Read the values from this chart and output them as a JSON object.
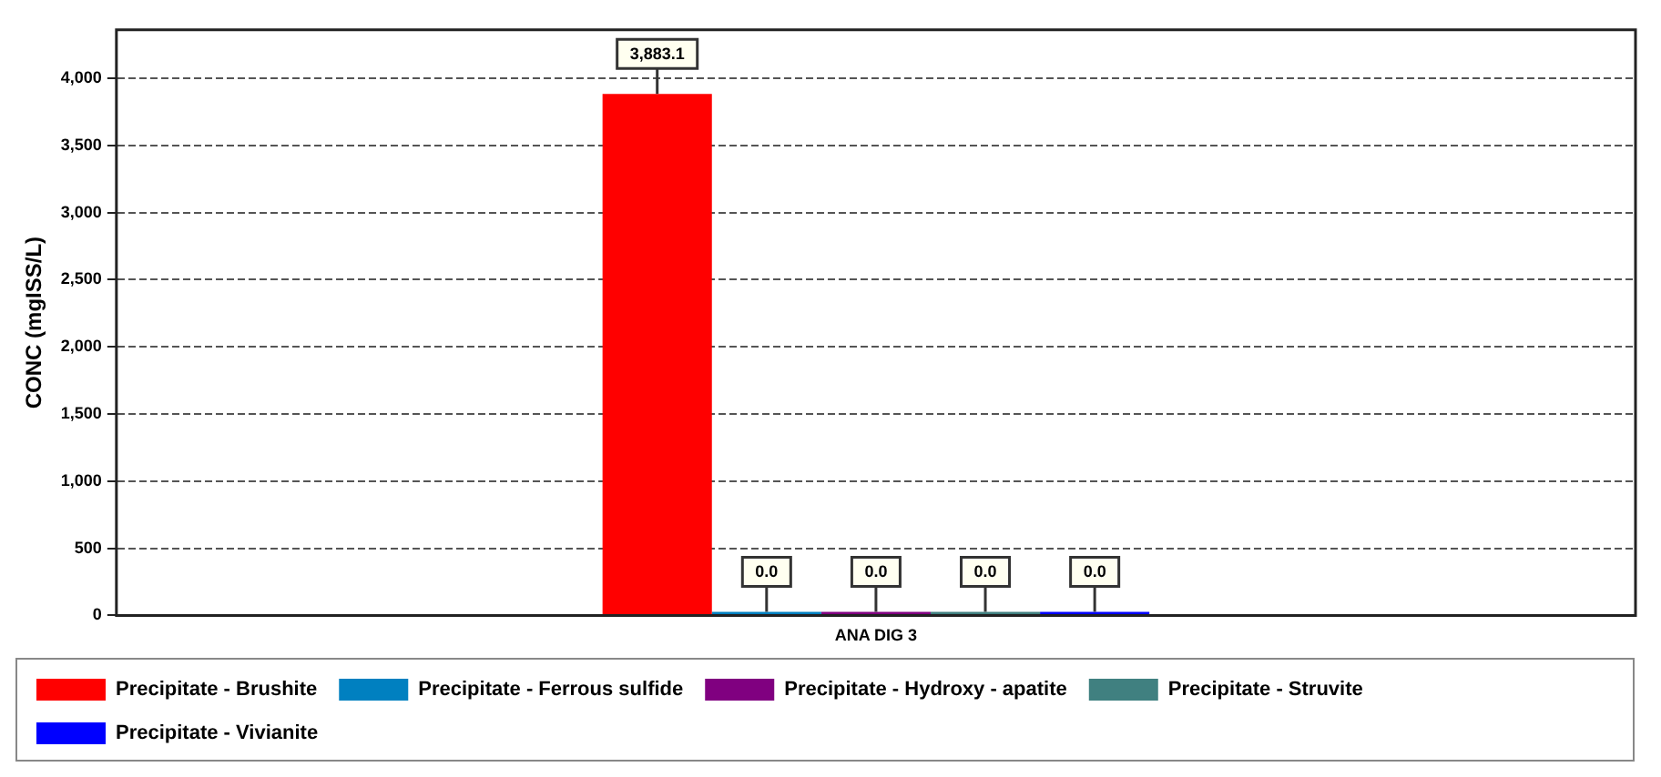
{
  "chart_data": {
    "type": "bar",
    "ylabel": "CONC (mgISS/L)",
    "categories": [
      "ANA DIG 3"
    ],
    "series": [
      {
        "name": "Precipitate - Brushite",
        "color": "#ff0000",
        "values": [
          3883.1
        ],
        "value_labels": [
          "3,883.1"
        ]
      },
      {
        "name": "Precipitate - Ferrous sulfide",
        "color": "#0080c0",
        "values": [
          0
        ],
        "value_labels": [
          "0.0"
        ]
      },
      {
        "name": "Precipitate - Hydroxy - apatite",
        "color": "#800080",
        "values": [
          0
        ],
        "value_labels": [
          "0.0"
        ]
      },
      {
        "name": "Precipitate - Struvite",
        "color": "#408080",
        "values": [
          0
        ],
        "value_labels": [
          "0.0"
        ]
      },
      {
        "name": "Precipitate - Vivianite",
        "color": "#0000ff",
        "values": [
          0
        ],
        "value_labels": [
          "0.0"
        ]
      }
    ],
    "ylim": [
      0,
      4360
    ],
    "yticks": [
      0,
      500,
      {
        "value": 1000,
        "label": "1,000"
      },
      {
        "value": 1500,
        "label": "1,500"
      },
      {
        "value": 2000,
        "label": "2,000"
      },
      {
        "value": 2500,
        "label": "2,500"
      },
      {
        "value": 3000,
        "label": "3,000"
      },
      {
        "value": 3500,
        "label": "3,500"
      },
      {
        "value": 4000,
        "label": "4,000"
      }
    ],
    "grid": "y",
    "legend": "bottom"
  }
}
